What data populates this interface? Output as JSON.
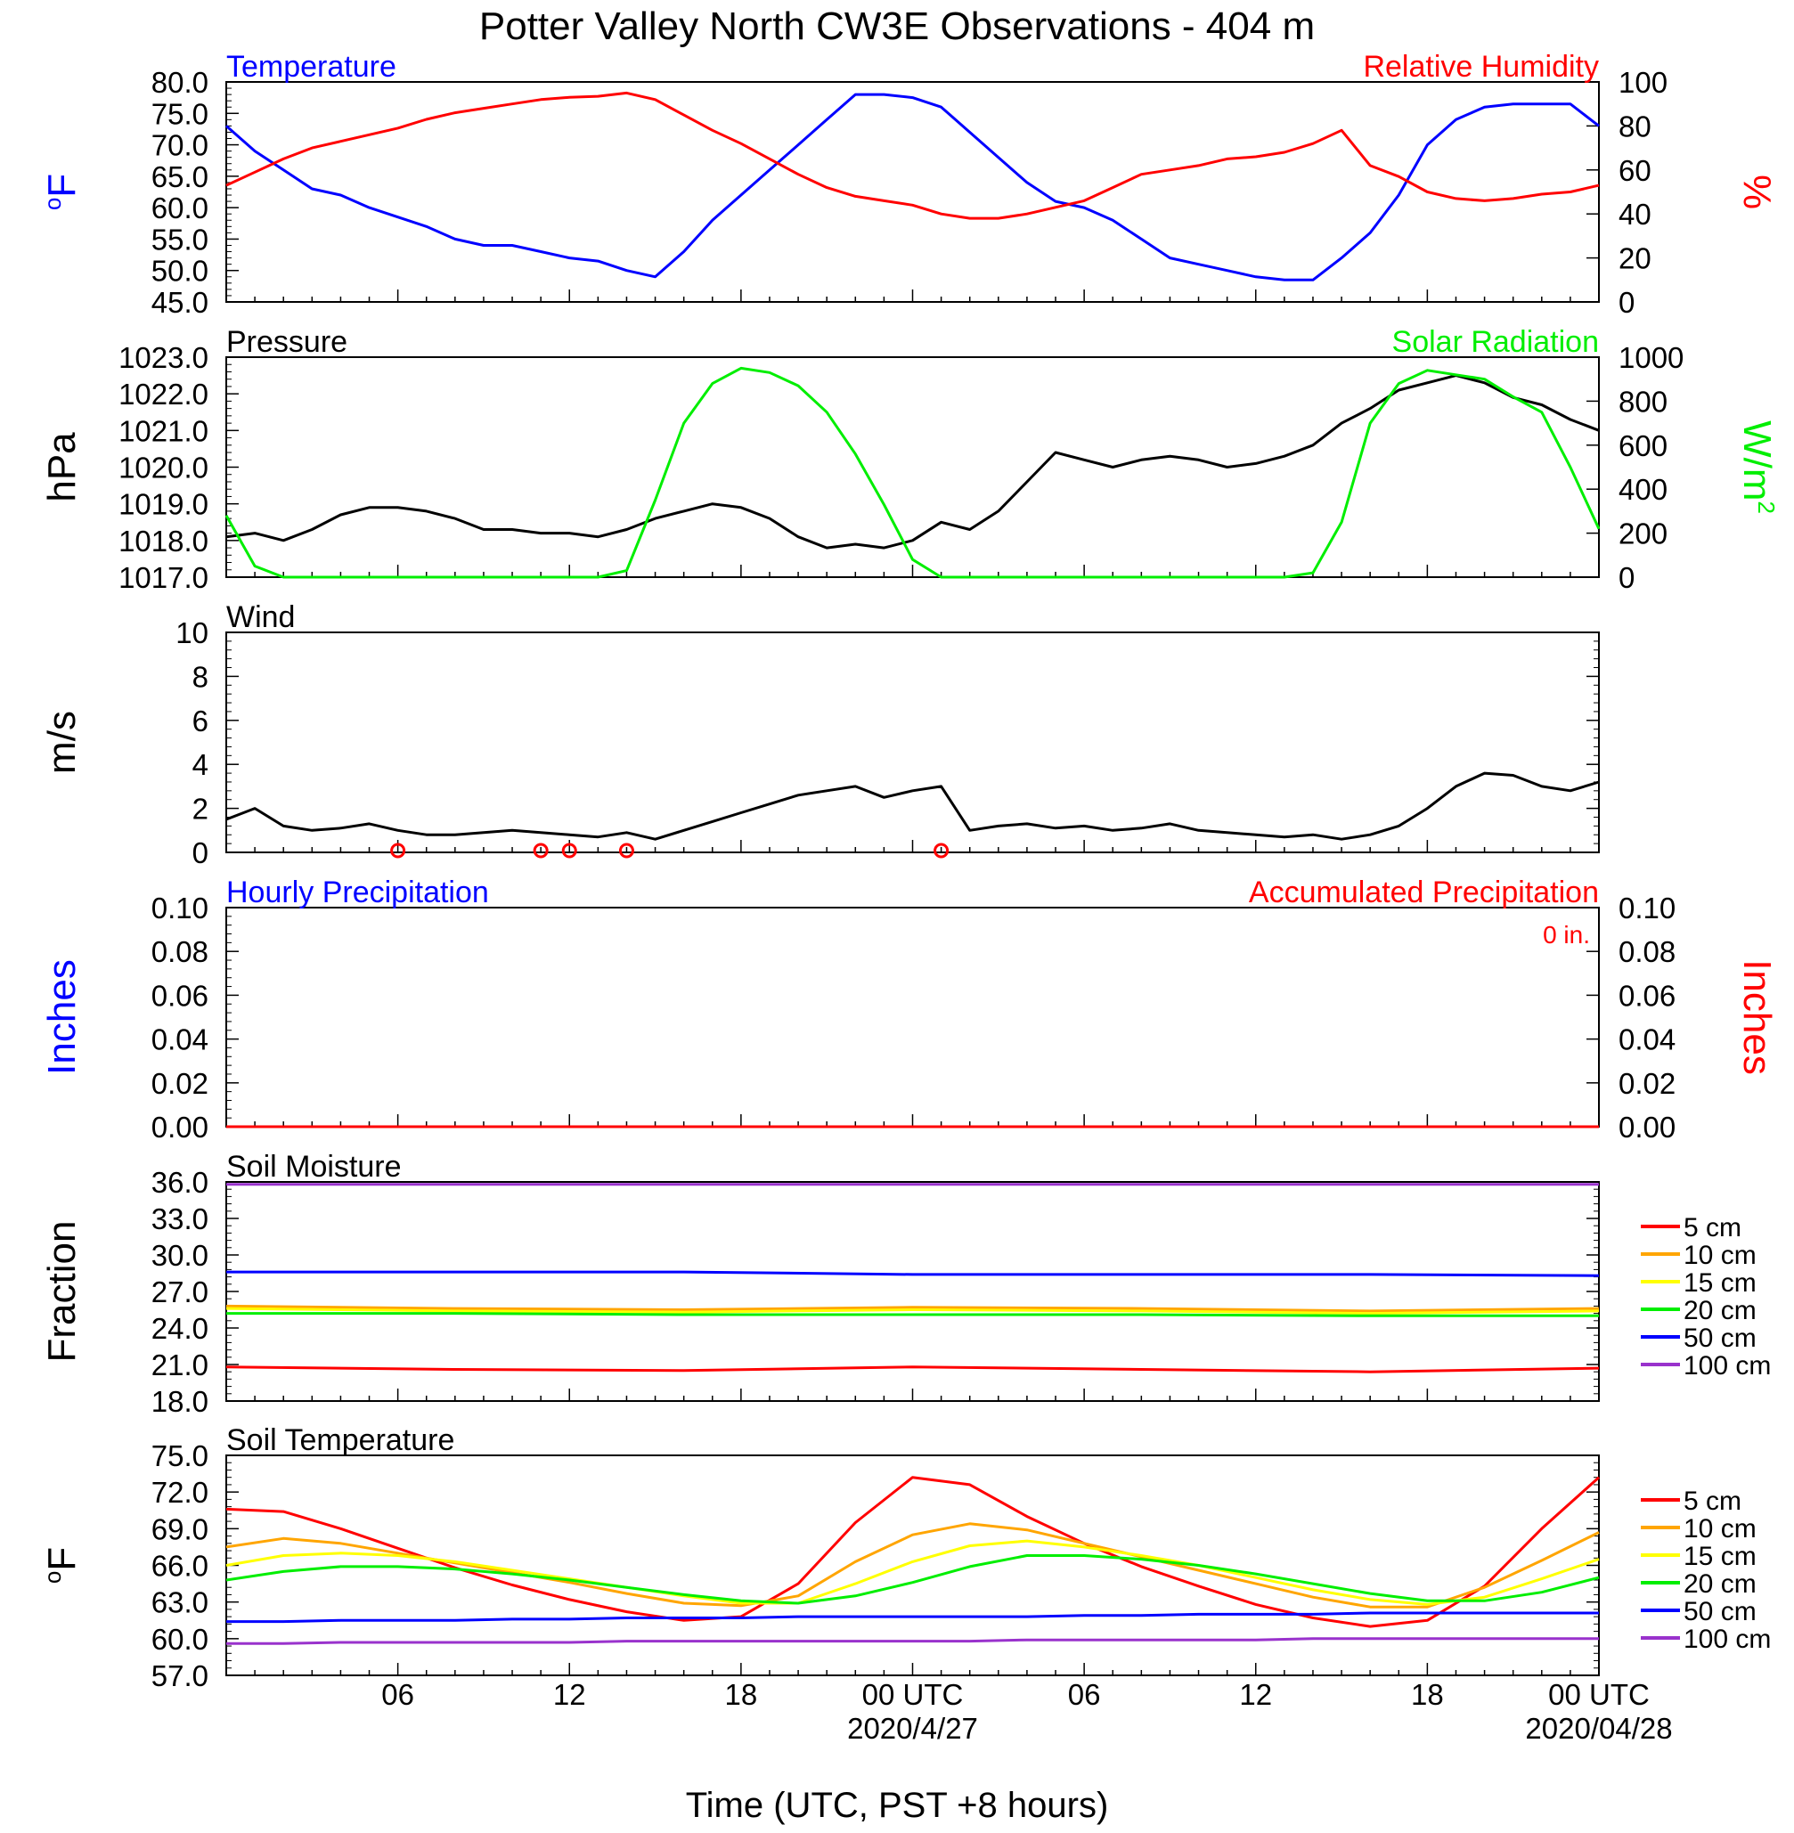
{
  "title": "Potter Valley North CW3E Observations - 404 m",
  "x_axis": {
    "ticks": [
      {
        "hour": 6,
        "label": "06",
        "date": ""
      },
      {
        "hour": 12,
        "label": "12",
        "date": ""
      },
      {
        "hour": 18,
        "label": "18",
        "date": ""
      },
      {
        "hour": 24,
        "label": "00 UTC",
        "date": "2020/4/27"
      },
      {
        "hour": 30,
        "label": "06",
        "date": ""
      },
      {
        "hour": 36,
        "label": "12",
        "date": ""
      },
      {
        "hour": 42,
        "label": "18",
        "date": ""
      },
      {
        "hour": 48,
        "label": "00 UTC",
        "date": "2020/04/28"
      }
    ],
    "xlabel": "Time (UTC, PST +8 hours)"
  },
  "colors": {
    "blue": "#0000ff",
    "red": "#ff0000",
    "green": "#00ee00",
    "black": "#000000",
    "orange": "#ffa500",
    "yellow": "#ffff00",
    "purple": "#9932cc"
  },
  "chart_data": [
    {
      "type": "line",
      "title_left": "Temperature",
      "title_right": "Relative Humidity",
      "ylabel_left": "oF",
      "ylabel_right": "%",
      "ylim_left": [
        45,
        80
      ],
      "yticks_left": [
        "45.0",
        "50.0",
        "55.0",
        "60.0",
        "65.0",
        "70.0",
        "75.0",
        "80.0"
      ],
      "ylim_right": [
        0,
        100
      ],
      "yticks_right": [
        "0",
        "20",
        "40",
        "60",
        "80",
        "100"
      ],
      "x_hours": [
        0,
        1,
        2,
        3,
        4,
        5,
        6,
        7,
        8,
        9,
        10,
        11,
        12,
        13,
        14,
        15,
        16,
        17,
        18,
        19,
        20,
        21,
        22,
        23,
        24,
        25,
        26,
        27,
        28,
        29,
        30,
        31,
        32,
        33,
        34,
        35,
        36,
        37,
        38,
        39,
        40,
        41,
        42,
        43,
        44,
        45,
        46,
        47,
        48
      ],
      "series": [
        {
          "name": "Temperature",
          "axis": "left",
          "color": "blue",
          "values": [
            73,
            69,
            66,
            63,
            62,
            60,
            58.5,
            57,
            55,
            54,
            54,
            53,
            52,
            51.5,
            50,
            49,
            53,
            58,
            62,
            66,
            70,
            74,
            78,
            78,
            77.5,
            76,
            72,
            68,
            64,
            61,
            60,
            58,
            55,
            52,
            51,
            50,
            49,
            48.5,
            48.5,
            52,
            56,
            62,
            70,
            74,
            76,
            76.5,
            76.5,
            76.5,
            73
          ]
        },
        {
          "name": "Relative Humidity",
          "axis": "right",
          "color": "red",
          "values": [
            53,
            59,
            65,
            70,
            73,
            76,
            79,
            83,
            86,
            88,
            90,
            92,
            93,
            93.5,
            95,
            92,
            85,
            78,
            72,
            65,
            58,
            52,
            48,
            46,
            44,
            40,
            38,
            38,
            40,
            43,
            46,
            52,
            58,
            60,
            62,
            65,
            66,
            68,
            72,
            78,
            62,
            57,
            50,
            47,
            46,
            47,
            49,
            50,
            53
          ]
        }
      ]
    },
    {
      "type": "line",
      "title_left": "Pressure",
      "title_right": "Solar Radiation",
      "ylabel_left": "hPa",
      "ylabel_right": "W/m2",
      "ylim_left": [
        1017,
        1023
      ],
      "yticks_left": [
        "1017.0",
        "1018.0",
        "1019.0",
        "1020.0",
        "1021.0",
        "1022.0",
        "1023.0"
      ],
      "ylim_right": [
        0,
        1000
      ],
      "yticks_right": [
        "0",
        "200",
        "400",
        "600",
        "800",
        "1000"
      ],
      "x_hours": [
        0,
        1,
        2,
        3,
        4,
        5,
        6,
        7,
        8,
        9,
        10,
        11,
        12,
        13,
        14,
        15,
        16,
        17,
        18,
        19,
        20,
        21,
        22,
        23,
        24,
        25,
        26,
        27,
        28,
        29,
        30,
        31,
        32,
        33,
        34,
        35,
        36,
        37,
        38,
        39,
        40,
        41,
        42,
        43,
        44,
        45,
        46,
        47,
        48
      ],
      "series": [
        {
          "name": "Pressure",
          "axis": "left",
          "color": "black",
          "values": [
            1018.1,
            1018.2,
            1018.0,
            1018.3,
            1018.7,
            1018.9,
            1018.9,
            1018.8,
            1018.6,
            1018.3,
            1018.3,
            1018.2,
            1018.2,
            1018.1,
            1018.3,
            1018.6,
            1018.8,
            1019.0,
            1018.9,
            1018.6,
            1018.1,
            1017.8,
            1017.9,
            1017.8,
            1018.0,
            1018.5,
            1018.3,
            1018.8,
            1019.6,
            1020.4,
            1020.2,
            1020.0,
            1020.2,
            1020.3,
            1020.2,
            1020.0,
            1020.1,
            1020.3,
            1020.6,
            1021.2,
            1021.6,
            1022.1,
            1022.3,
            1022.5,
            1022.3,
            1021.9,
            1021.7,
            1021.3,
            1021.0
          ]
        },
        {
          "name": "Solar Radiation",
          "axis": "right",
          "color": "green",
          "values": [
            280,
            50,
            0,
            0,
            0,
            0,
            0,
            0,
            0,
            0,
            0,
            0,
            0,
            0,
            30,
            350,
            700,
            880,
            950,
            930,
            870,
            750,
            560,
            330,
            80,
            0,
            0,
            0,
            0,
            0,
            0,
            0,
            0,
            0,
            0,
            0,
            0,
            0,
            20,
            250,
            700,
            880,
            940,
            920,
            900,
            820,
            750,
            500,
            220
          ]
        }
      ]
    },
    {
      "type": "line",
      "title_left": "Wind",
      "ylabel_left": "m/s",
      "ylim_left": [
        0,
        10
      ],
      "yticks_left": [
        "0",
        "2",
        "4",
        "6",
        "8",
        "10"
      ],
      "x_hours": [
        0,
        1,
        2,
        3,
        4,
        5,
        6,
        7,
        8,
        9,
        10,
        11,
        12,
        13,
        14,
        15,
        16,
        17,
        18,
        19,
        20,
        21,
        22,
        23,
        24,
        25,
        26,
        27,
        28,
        29,
        30,
        31,
        32,
        33,
        34,
        35,
        36,
        37,
        38,
        39,
        40,
        41,
        42,
        43,
        44,
        45,
        46,
        47,
        48
      ],
      "series": [
        {
          "name": "Wind",
          "axis": "left",
          "color": "black",
          "values": [
            1.5,
            2.0,
            1.2,
            1.0,
            1.1,
            1.3,
            1.0,
            0.8,
            0.8,
            0.9,
            1.0,
            0.9,
            0.8,
            0.7,
            0.9,
            0.6,
            1.0,
            1.4,
            1.8,
            2.2,
            2.6,
            2.8,
            3.0,
            2.5,
            2.8,
            3.0,
            1.0,
            1.2,
            1.3,
            1.1,
            1.2,
            1.0,
            1.1,
            1.3,
            1.0,
            0.9,
            0.8,
            0.7,
            0.8,
            0.6,
            0.8,
            1.2,
            2.0,
            3.0,
            3.6,
            3.5,
            3.0,
            2.8,
            3.2
          ]
        }
      ],
      "calm_markers_hours": [
        6.0,
        11.0,
        12.0,
        14.0,
        25.0
      ]
    },
    {
      "type": "line",
      "title_left": "Hourly Precipitation",
      "title_right": "Accumulated Precipitation",
      "annotation": "0 in.",
      "ylabel_left": "Inches",
      "ylabel_right": "Inches",
      "ylim_left": [
        0,
        0.1
      ],
      "yticks_left": [
        "0.00",
        "0.02",
        "0.04",
        "0.06",
        "0.08",
        "0.10"
      ],
      "ylim_right": [
        0,
        0.1
      ],
      "yticks_right": [
        "0.00",
        "0.02",
        "0.04",
        "0.06",
        "0.08",
        "0.10"
      ],
      "x_hours": [
        0,
        48
      ],
      "series": [
        {
          "name": "Hourly Precipitation",
          "axis": "left",
          "color": "blue",
          "values": [
            0,
            0
          ]
        },
        {
          "name": "Accumulated Precipitation",
          "axis": "right",
          "color": "red",
          "values": [
            0,
            0
          ]
        }
      ]
    },
    {
      "type": "line",
      "title_left": "Soil Moisture",
      "ylabel_left": "Fraction",
      "ylim_left": [
        18,
        36
      ],
      "yticks_left": [
        "18.0",
        "21.0",
        "24.0",
        "27.0",
        "30.0",
        "33.0",
        "36.0"
      ],
      "x_hours": [
        0,
        8,
        16,
        24,
        32,
        40,
        48
      ],
      "legend": [
        {
          "label": "5 cm",
          "color": "red"
        },
        {
          "label": "10 cm",
          "color": "orange"
        },
        {
          "label": "15 cm",
          "color": "yellow"
        },
        {
          "label": "20 cm",
          "color": "green"
        },
        {
          "label": "50 cm",
          "color": "blue"
        },
        {
          "label": "100 cm",
          "color": "purple"
        }
      ],
      "series": [
        {
          "name": "5 cm",
          "color": "red",
          "values": [
            20.8,
            20.6,
            20.5,
            20.8,
            20.6,
            20.4,
            20.7
          ]
        },
        {
          "name": "10 cm",
          "color": "orange",
          "values": [
            25.8,
            25.6,
            25.5,
            25.7,
            25.6,
            25.4,
            25.6
          ]
        },
        {
          "name": "15 cm",
          "color": "yellow",
          "values": [
            25.6,
            25.4,
            25.3,
            25.5,
            25.4,
            25.2,
            25.4
          ]
        },
        {
          "name": "20 cm",
          "color": "green",
          "values": [
            25.2,
            25.2,
            25.1,
            25.1,
            25.1,
            25.0,
            25.0
          ]
        },
        {
          "name": "50 cm",
          "color": "blue",
          "values": [
            28.6,
            28.6,
            28.6,
            28.4,
            28.4,
            28.4,
            28.3
          ]
        },
        {
          "name": "100 cm",
          "color": "purple",
          "values": [
            35.8,
            35.8,
            35.8,
            35.8,
            35.8,
            35.8,
            35.8
          ]
        }
      ]
    },
    {
      "type": "line",
      "title_left": "Soil Temperature",
      "ylabel_left": "oF",
      "ylim_left": [
        57,
        75
      ],
      "yticks_left": [
        "57.0",
        "60.0",
        "63.0",
        "66.0",
        "69.0",
        "72.0",
        "75.0"
      ],
      "x_hours": [
        0,
        2,
        4,
        6,
        8,
        10,
        12,
        14,
        16,
        18,
        20,
        22,
        24,
        26,
        28,
        30,
        32,
        34,
        36,
        38,
        40,
        42,
        44,
        46,
        48
      ],
      "legend": [
        {
          "label": "5 cm",
          "color": "red"
        },
        {
          "label": "10 cm",
          "color": "orange"
        },
        {
          "label": "15 cm",
          "color": "yellow"
        },
        {
          "label": "20 cm",
          "color": "green"
        },
        {
          "label": "50 cm",
          "color": "blue"
        },
        {
          "label": "100 cm",
          "color": "purple"
        }
      ],
      "series": [
        {
          "name": "5 cm",
          "color": "red",
          "values": [
            70.6,
            70.4,
            69.0,
            67.4,
            65.8,
            64.4,
            63.2,
            62.2,
            61.5,
            61.8,
            64.5,
            69.5,
            73.2,
            72.6,
            70.0,
            67.8,
            65.9,
            64.3,
            62.8,
            61.7,
            61.0,
            61.5,
            64.3,
            69.0,
            73.2
          ]
        },
        {
          "name": "10 cm",
          "color": "orange",
          "values": [
            67.5,
            68.2,
            67.8,
            67.0,
            66.2,
            65.4,
            64.6,
            63.7,
            62.9,
            62.7,
            63.5,
            66.3,
            68.5,
            69.4,
            68.9,
            67.8,
            66.7,
            65.6,
            64.5,
            63.4,
            62.6,
            62.6,
            64.2,
            66.4,
            68.7
          ]
        },
        {
          "name": "15 cm",
          "color": "yellow",
          "values": [
            66.0,
            66.8,
            67.0,
            66.8,
            66.3,
            65.6,
            64.9,
            64.2,
            63.5,
            62.9,
            62.9,
            64.5,
            66.3,
            67.6,
            68.0,
            67.5,
            66.8,
            66.0,
            65.0,
            64.0,
            63.2,
            62.8,
            63.4,
            64.9,
            66.5
          ]
        },
        {
          "name": "20 cm",
          "color": "green",
          "values": [
            64.8,
            65.5,
            65.9,
            65.9,
            65.7,
            65.3,
            64.8,
            64.2,
            63.6,
            63.1,
            62.9,
            63.5,
            64.6,
            65.9,
            66.8,
            66.8,
            66.5,
            66.0,
            65.3,
            64.5,
            63.7,
            63.1,
            63.1,
            63.8,
            65.0
          ]
        },
        {
          "name": "50 cm",
          "color": "blue",
          "values": [
            61.4,
            61.4,
            61.5,
            61.5,
            61.5,
            61.6,
            61.6,
            61.7,
            61.7,
            61.7,
            61.8,
            61.8,
            61.8,
            61.8,
            61.8,
            61.9,
            61.9,
            62.0,
            62.0,
            62.0,
            62.1,
            62.1,
            62.1,
            62.1,
            62.1
          ]
        },
        {
          "name": "100 cm",
          "color": "purple",
          "values": [
            59.6,
            59.6,
            59.7,
            59.7,
            59.7,
            59.7,
            59.7,
            59.8,
            59.8,
            59.8,
            59.8,
            59.8,
            59.8,
            59.8,
            59.9,
            59.9,
            59.9,
            59.9,
            59.9,
            60.0,
            60.0,
            60.0,
            60.0,
            60.0,
            60.0
          ]
        }
      ]
    }
  ]
}
